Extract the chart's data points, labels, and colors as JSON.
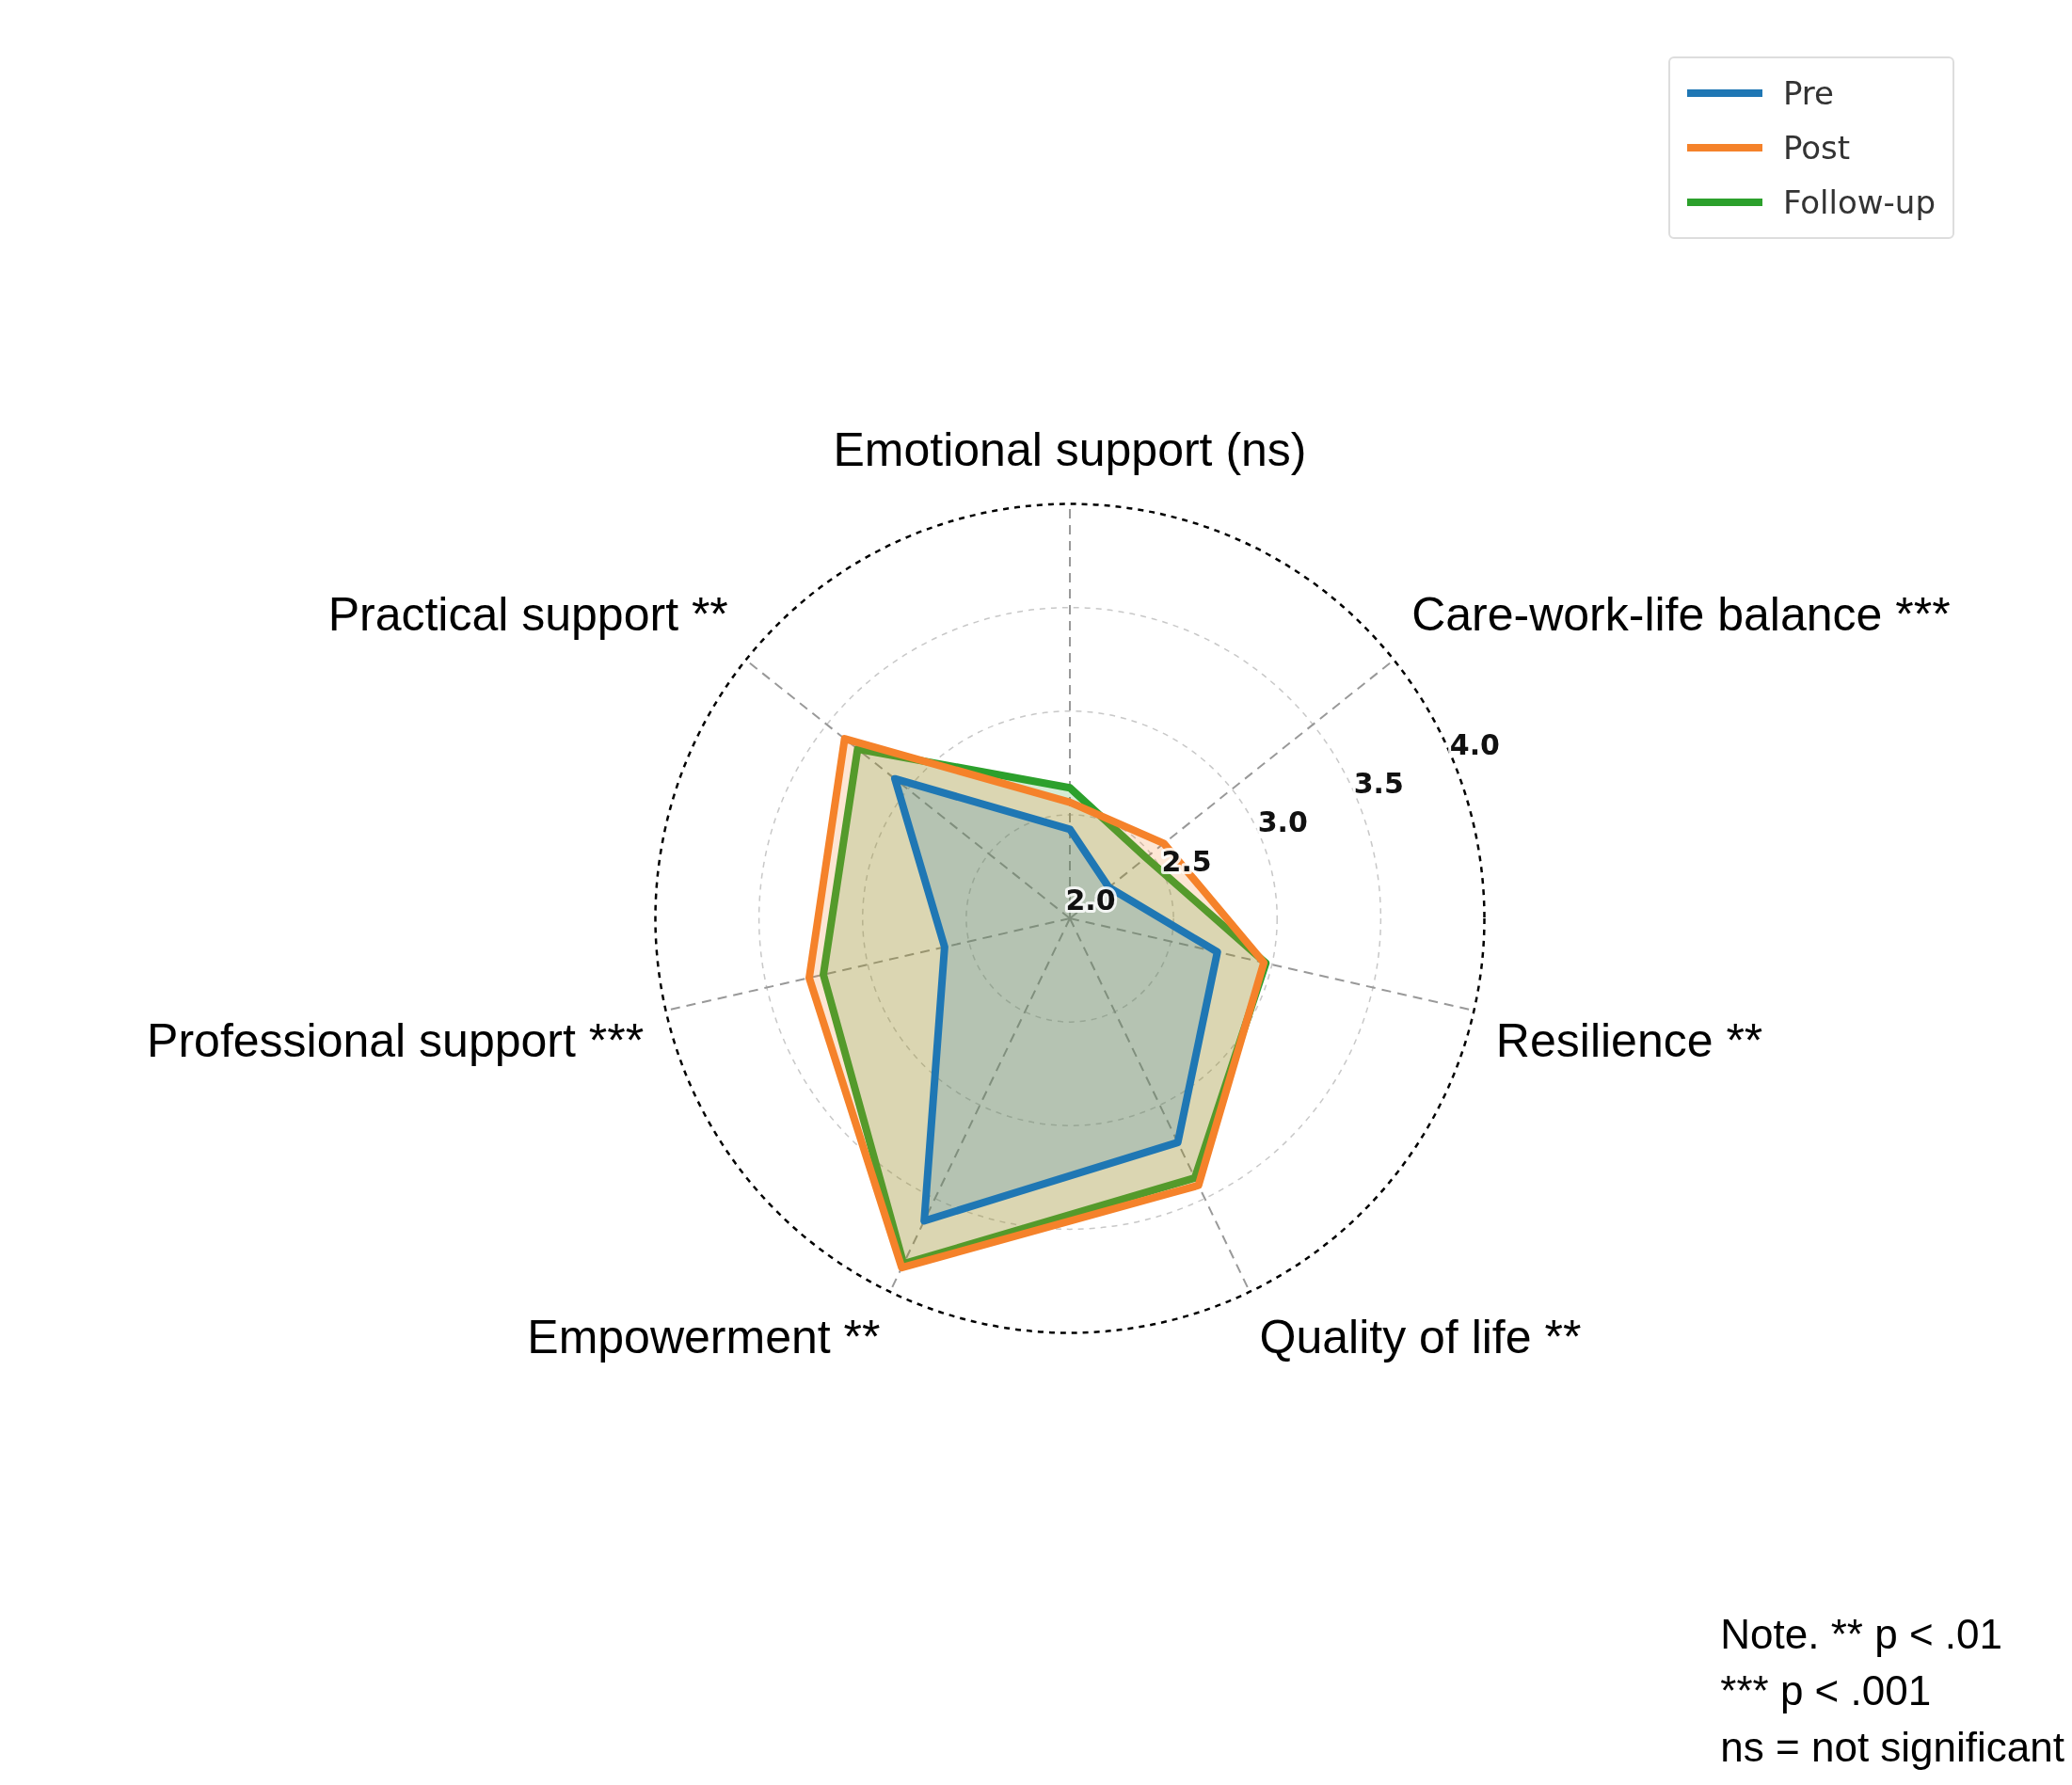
{
  "chart_data": {
    "type": "radar",
    "categories": [
      "Care-work-life balance ***",
      "Resilience **",
      "Quality of life **",
      "Empowerment **",
      "Professional support ***",
      "Practical support **",
      "Emotional support (ns)"
    ],
    "series": [
      {
        "name": "Pre",
        "color": "#1f77b4",
        "values": [
          2.24,
          2.73,
          3.2,
          3.62,
          2.62,
          3.08,
          2.43
        ]
      },
      {
        "name": "Post",
        "color": "#f5822a",
        "values": [
          2.58,
          2.96,
          3.43,
          3.87,
          3.29,
          3.39,
          2.56
        ]
      },
      {
        "name": "Follow-up",
        "color": "#2ca02c",
        "values": [
          2.47,
          2.97,
          3.39,
          3.85,
          3.22,
          3.31,
          2.63
        ]
      }
    ],
    "ylim": [
      2,
      4
    ],
    "yticks": [
      {
        "value": 2,
        "label": "2.0"
      },
      {
        "value": 2.5,
        "label": "2.5"
      },
      {
        "value": 3,
        "label": "3.0"
      },
      {
        "value": 3.5,
        "label": "3.5"
      },
      {
        "value": 4,
        "label": "4.0"
      }
    ],
    "grid": true,
    "legend": "top right",
    "annotations": [
      "Note. ** p < .01",
      "*** p < .001",
      "ns = not significant"
    ]
  }
}
